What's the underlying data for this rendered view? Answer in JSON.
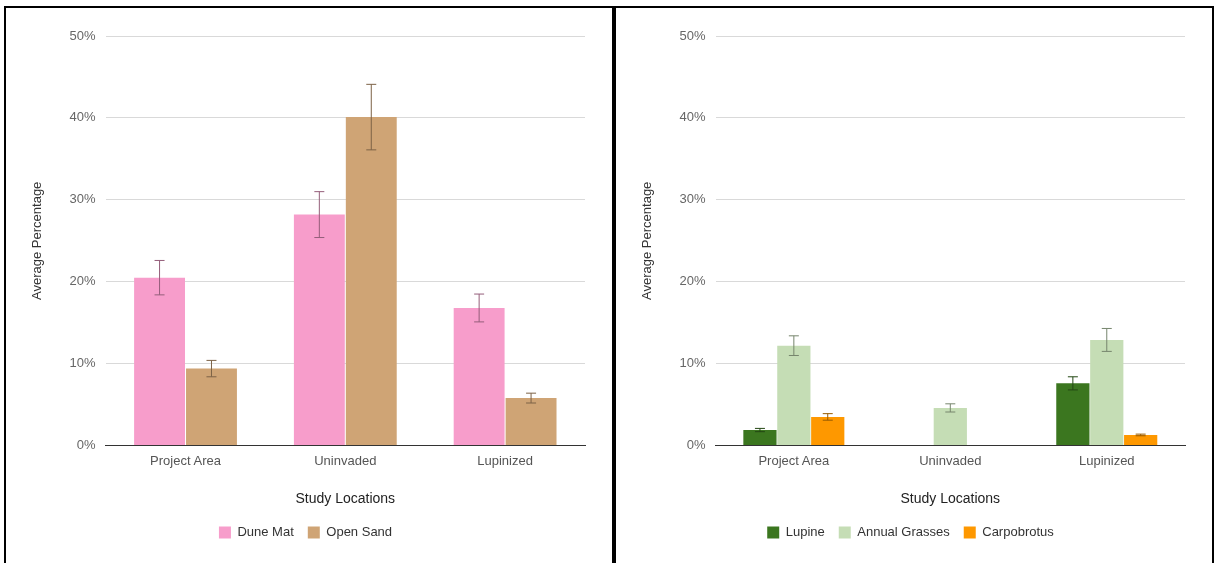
{
  "chart_data": [
    {
      "type": "bar",
      "xlabel": "Study Locations",
      "ylabel": "Average Percentage",
      "categories": [
        "Project Area",
        "Uninvaded",
        "Lupinized"
      ],
      "series": [
        {
          "name": "Dune Mat",
          "color": "#f79dcb",
          "values": [
            20.5,
            28.2,
            16.8
          ],
          "errors": [
            2.1,
            2.8,
            1.7
          ]
        },
        {
          "name": "Open Sand",
          "color": "#cfa475",
          "values": [
            9.4,
            40.1,
            5.8
          ],
          "errors": [
            1.0,
            4.0,
            0.6
          ]
        }
      ],
      "ylim": [
        0,
        50
      ],
      "yticks": [
        {
          "value": 0,
          "label": "0%"
        },
        {
          "value": 10,
          "label": "10%"
        },
        {
          "value": 20,
          "label": "20%"
        },
        {
          "value": 30,
          "label": "30%"
        },
        {
          "value": 40,
          "label": "40%"
        },
        {
          "value": 50,
          "label": "50%"
        }
      ],
      "grid": "y",
      "legend": "bottom"
    },
    {
      "type": "bar",
      "xlabel": "Study Locations",
      "ylabel": "Average Percentage",
      "categories": [
        "Project Area",
        "Uninvaded",
        "Lupinized"
      ],
      "series": [
        {
          "name": "Lupine",
          "color": "#3b761f",
          "values": [
            1.9,
            0,
            7.6
          ],
          "errors": [
            0.2,
            null,
            0.8
          ]
        },
        {
          "name": "Annual Grasses",
          "color": "#c5ddb5",
          "values": [
            12.2,
            4.6,
            12.9
          ],
          "errors": [
            1.2,
            0.5,
            1.4
          ]
        },
        {
          "name": "Carpobrotus",
          "color": "#fe9800",
          "values": [
            3.5,
            0,
            1.3
          ],
          "errors": [
            0.4,
            null,
            0.1
          ]
        }
      ],
      "ylim": [
        0,
        50
      ],
      "yticks": [
        {
          "value": 0,
          "label": "0%"
        },
        {
          "value": 10,
          "label": "10%"
        },
        {
          "value": 20,
          "label": "20%"
        },
        {
          "value": 30,
          "label": "30%"
        },
        {
          "value": 40,
          "label": "40%"
        },
        {
          "value": 50,
          "label": "50%"
        }
      ],
      "grid": "y",
      "legend": "bottom"
    }
  ]
}
